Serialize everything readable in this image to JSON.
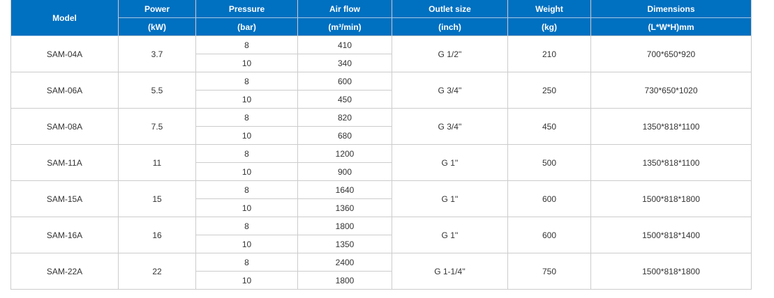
{
  "header": {
    "model": "Model",
    "columns": [
      {
        "label": "Power",
        "unit": "(kW)"
      },
      {
        "label": "Pressure",
        "unit": "(bar)"
      },
      {
        "label": "Air flow",
        "unit": "(m³/min)"
      },
      {
        "label": "Outlet size",
        "unit": "(inch)"
      },
      {
        "label": "Weight",
        "unit": "(kg)"
      },
      {
        "label": "Dimensions",
        "unit": "(L*W*H)mm"
      }
    ]
  },
  "rows": [
    {
      "model": "SAM-04A",
      "power": "3.7",
      "specs": [
        {
          "pressure": "8",
          "airflow": "410"
        },
        {
          "pressure": "10",
          "airflow": "340"
        }
      ],
      "outlet": "G 1/2''",
      "weight": "210",
      "dimensions": "700*650*920"
    },
    {
      "model": "SAM-06A",
      "power": "5.5",
      "specs": [
        {
          "pressure": "8",
          "airflow": "600"
        },
        {
          "pressure": "10",
          "airflow": "450"
        }
      ],
      "outlet": "G 3/4''",
      "weight": "250",
      "dimensions": "730*650*1020"
    },
    {
      "model": "SAM-08A",
      "power": "7.5",
      "specs": [
        {
          "pressure": "8",
          "airflow": "820"
        },
        {
          "pressure": "10",
          "airflow": "680"
        }
      ],
      "outlet": "G 3/4''",
      "weight": "450",
      "dimensions": "1350*818*1100"
    },
    {
      "model": "SAM-11A",
      "power": "11",
      "specs": [
        {
          "pressure": "8",
          "airflow": "1200"
        },
        {
          "pressure": "10",
          "airflow": "900"
        }
      ],
      "outlet": "G 1''",
      "weight": "500",
      "dimensions": "1350*818*1100"
    },
    {
      "model": "SAM-15A",
      "power": "15",
      "specs": [
        {
          "pressure": "8",
          "airflow": "1640"
        },
        {
          "pressure": "10",
          "airflow": "1360"
        }
      ],
      "outlet": "G 1''",
      "weight": "600",
      "dimensions": "1500*818*1800"
    },
    {
      "model": "SAM-16A",
      "power": "16",
      "specs": [
        {
          "pressure": "8",
          "airflow": "1800"
        },
        {
          "pressure": "10",
          "airflow": "1350"
        }
      ],
      "outlet": "G 1''",
      "weight": "600",
      "dimensions": "1500*818*1400"
    },
    {
      "model": "SAM-22A",
      "power": "22",
      "specs": [
        {
          "pressure": "8",
          "airflow": "2400"
        },
        {
          "pressure": "10",
          "airflow": "1800"
        }
      ],
      "outlet": "G 1-1/4''",
      "weight": "750",
      "dimensions": "1500*818*1800"
    }
  ],
  "colors": {
    "header_bg": "#0070c0",
    "border": "#cccccc"
  }
}
